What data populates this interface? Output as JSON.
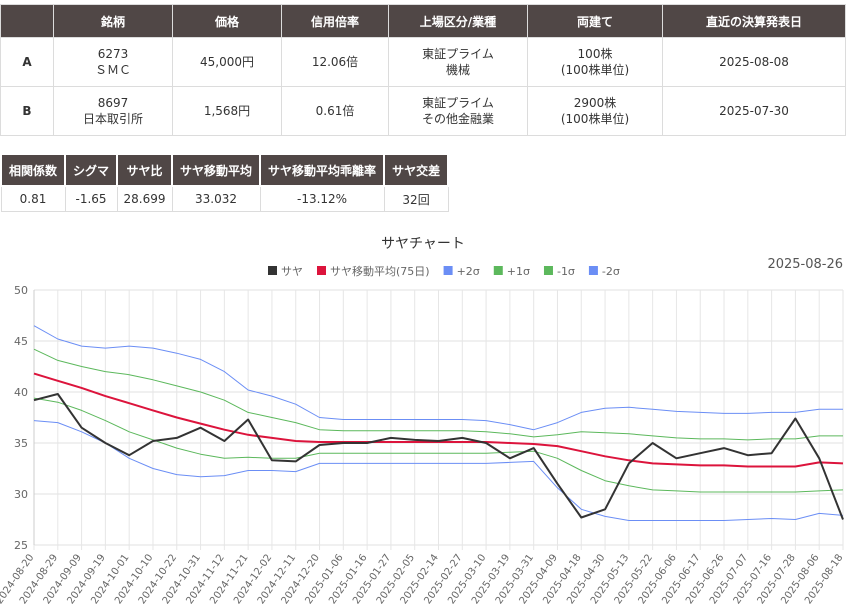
{
  "top_table": {
    "headers": [
      "",
      "銘柄",
      "価格",
      "信用倍率",
      "上場区分/業種",
      "両建て",
      "直近の決算発表日"
    ],
    "rows": [
      {
        "label": "A",
        "code": "6273",
        "name": "ＳＭＣ",
        "price": "45,000円",
        "margin": "12.06倍",
        "market": "東証プライム",
        "sector": "機械",
        "shares": "100株",
        "unit": "(100株単位)",
        "date": "2025-08-08"
      },
      {
        "label": "B",
        "code": "8697",
        "name": "日本取引所",
        "price": "1,568円",
        "margin": "0.61倍",
        "market": "東証プライム",
        "sector": "その他金融業",
        "shares": "2900株",
        "unit": "(100株単位)",
        "date": "2025-07-30"
      }
    ]
  },
  "stats": {
    "headers": [
      "相関係数",
      "シグマ",
      "サヤ比",
      "サヤ移動平均",
      "サヤ移動平均乖離率",
      "サヤ交差"
    ],
    "values": [
      "0.81",
      "-1.65",
      "28.699",
      "33.032",
      "-13.12%",
      "32回"
    ]
  },
  "chart_data": {
    "type": "line",
    "title": "サヤチャート",
    "date_label": "2025-08-26",
    "ylim": [
      25,
      50
    ],
    "yticks": [
      "25",
      "30",
      "35",
      "40",
      "45",
      "50"
    ],
    "grid": true,
    "legend_position": "top",
    "x": [
      "2024-08-20",
      "2024-08-29",
      "2024-09-09",
      "2024-09-19",
      "2024-10-01",
      "2024-10-10",
      "2024-10-22",
      "2024-10-31",
      "2024-11-12",
      "2024-11-21",
      "2024-12-02",
      "2024-12-11",
      "2024-12-20",
      "2025-01-06",
      "2025-01-16",
      "2025-01-27",
      "2025-02-05",
      "2025-02-14",
      "2025-02-27",
      "2025-03-10",
      "2025-03-19",
      "2025-03-31",
      "2025-04-09",
      "2025-04-18",
      "2025-04-30",
      "2025-05-13",
      "2025-05-22",
      "2025-06-06",
      "2025-06-17",
      "2025-06-26",
      "2025-07-07",
      "2025-07-16",
      "2025-07-28",
      "2025-08-06",
      "2025-08-18"
    ],
    "series": [
      {
        "name": "サヤ",
        "color": "#333333",
        "width": 2,
        "values": [
          39.2,
          39.8,
          36.5,
          35.0,
          33.8,
          35.2,
          35.5,
          36.5,
          35.2,
          37.3,
          33.3,
          33.2,
          34.8,
          35.0,
          35.0,
          35.5,
          35.3,
          35.2,
          35.5,
          35.0,
          33.5,
          34.5,
          31.0,
          27.7,
          28.5,
          33.0,
          35.0,
          33.5,
          34.0,
          34.5,
          33.8,
          34.0,
          37.4,
          33.5,
          27.5
        ]
      },
      {
        "name": "サヤ移動平均(75日)",
        "color": "#dc143c",
        "width": 2,
        "values": [
          41.8,
          41.1,
          40.4,
          39.6,
          38.9,
          38.2,
          37.5,
          36.9,
          36.3,
          35.8,
          35.5,
          35.2,
          35.1,
          35.1,
          35.1,
          35.1,
          35.1,
          35.1,
          35.1,
          35.1,
          35.0,
          34.9,
          34.7,
          34.2,
          33.7,
          33.3,
          33.0,
          32.9,
          32.8,
          32.8,
          32.7,
          32.7,
          32.7,
          33.1,
          33.0
        ]
      },
      {
        "name": "+2σ",
        "color": "#6b8ef5",
        "width": 1,
        "values": [
          46.5,
          45.2,
          44.5,
          44.3,
          44.5,
          44.3,
          43.8,
          43.2,
          42.0,
          40.2,
          39.6,
          38.8,
          37.5,
          37.3,
          37.3,
          37.3,
          37.3,
          37.3,
          37.3,
          37.2,
          36.8,
          36.3,
          37.0,
          38.0,
          38.4,
          38.5,
          38.3,
          38.1,
          38.0,
          37.9,
          37.9,
          38.0,
          38.0,
          38.3,
          38.3
        ]
      },
      {
        "name": "+1σ",
        "color": "#5cb85c",
        "width": 1,
        "values": [
          44.2,
          43.1,
          42.5,
          42.0,
          41.7,
          41.2,
          40.6,
          40.0,
          39.2,
          38.0,
          37.5,
          37.0,
          36.3,
          36.2,
          36.2,
          36.2,
          36.2,
          36.2,
          36.2,
          36.1,
          35.9,
          35.6,
          35.8,
          36.1,
          36.0,
          35.9,
          35.7,
          35.5,
          35.4,
          35.4,
          35.3,
          35.4,
          35.4,
          35.7,
          35.7
        ]
      },
      {
        "name": "-1σ",
        "color": "#5cb85c",
        "width": 1,
        "values": [
          39.4,
          39.0,
          38.2,
          37.2,
          36.1,
          35.3,
          34.5,
          33.9,
          33.5,
          33.6,
          33.5,
          33.5,
          34.0,
          34.0,
          34.0,
          34.0,
          34.0,
          34.0,
          34.0,
          34.0,
          34.1,
          34.2,
          33.5,
          32.3,
          31.3,
          30.8,
          30.4,
          30.3,
          30.2,
          30.2,
          30.2,
          30.2,
          30.2,
          30.3,
          30.4
        ]
      },
      {
        "name": "-2σ",
        "color": "#6b8ef5",
        "width": 1,
        "values": [
          37.2,
          37.0,
          36.1,
          35.0,
          33.5,
          32.5,
          31.9,
          31.7,
          31.8,
          32.3,
          32.3,
          32.2,
          33.0,
          33.0,
          33.0,
          33.0,
          33.0,
          33.0,
          33.0,
          33.0,
          33.1,
          33.2,
          30.6,
          28.5,
          27.8,
          27.4,
          27.4,
          27.4,
          27.4,
          27.4,
          27.5,
          27.6,
          27.5,
          28.1,
          27.9
        ]
      }
    ]
  }
}
